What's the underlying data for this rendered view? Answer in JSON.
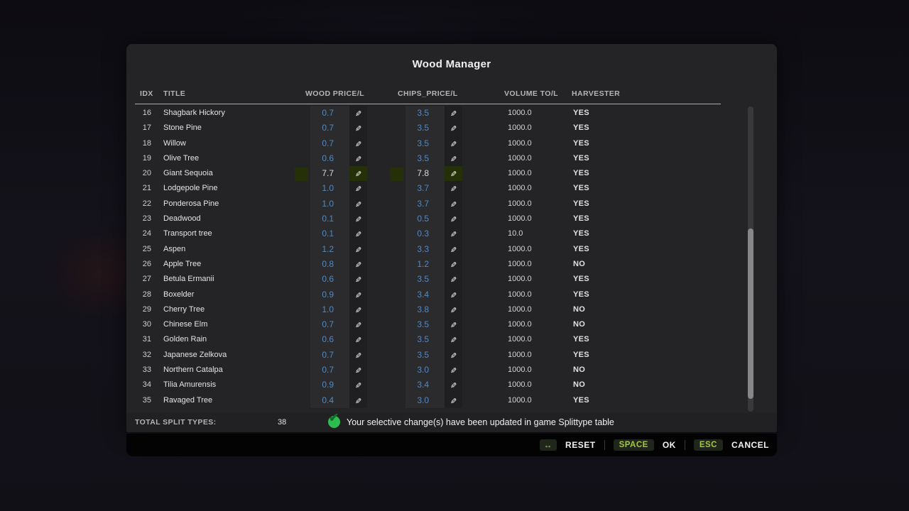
{
  "panel": {
    "title": "Wood Manager",
    "columns": {
      "idx": "IDX",
      "title": "TITLE",
      "wood": "WOOD PRICE/L",
      "chips": "CHIPS_PRICE/L",
      "volume": "VOLUME TO/L",
      "harvester": "HARVESTER"
    },
    "footer": {
      "total_label": "TOTAL SPLIT TYPES:",
      "total_value": "38",
      "status_message": "Your selective change(s) have been updated in game Splittype table"
    }
  },
  "table": {
    "rows": [
      {
        "idx": "16",
        "title": "Shagbark Hickory",
        "wood": "0.7",
        "chips": "3.5",
        "volume": "1000.0",
        "harvester": "YES",
        "highlight": false
      },
      {
        "idx": "17",
        "title": "Stone Pine",
        "wood": "0.7",
        "chips": "3.5",
        "volume": "1000.0",
        "harvester": "YES",
        "highlight": false
      },
      {
        "idx": "18",
        "title": "Willow",
        "wood": "0.7",
        "chips": "3.5",
        "volume": "1000.0",
        "harvester": "YES",
        "highlight": false
      },
      {
        "idx": "19",
        "title": "Olive Tree",
        "wood": "0.6",
        "chips": "3.5",
        "volume": "1000.0",
        "harvester": "YES",
        "highlight": false
      },
      {
        "idx": "20",
        "title": "Giant Sequoia",
        "wood": "7.7",
        "chips": "7.8",
        "volume": "1000.0",
        "harvester": "YES",
        "highlight": true
      },
      {
        "idx": "21",
        "title": "Lodgepole Pine",
        "wood": "1.0",
        "chips": "3.7",
        "volume": "1000.0",
        "harvester": "YES",
        "highlight": false
      },
      {
        "idx": "22",
        "title": "Ponderosa Pine",
        "wood": "1.0",
        "chips": "3.7",
        "volume": "1000.0",
        "harvester": "YES",
        "highlight": false
      },
      {
        "idx": "23",
        "title": "Deadwood",
        "wood": "0.1",
        "chips": "0.5",
        "volume": "1000.0",
        "harvester": "YES",
        "highlight": false
      },
      {
        "idx": "24",
        "title": "Transport tree",
        "wood": "0.1",
        "chips": "0.3",
        "volume": "10.0",
        "harvester": "YES",
        "highlight": false
      },
      {
        "idx": "25",
        "title": "Aspen",
        "wood": "1.2",
        "chips": "3.3",
        "volume": "1000.0",
        "harvester": "YES",
        "highlight": false
      },
      {
        "idx": "26",
        "title": "Apple Tree",
        "wood": "0.8",
        "chips": "1.2",
        "volume": "1000.0",
        "harvester": "NO",
        "highlight": false
      },
      {
        "idx": "27",
        "title": "Betula Ermanii",
        "wood": "0.6",
        "chips": "3.5",
        "volume": "1000.0",
        "harvester": "YES",
        "highlight": false
      },
      {
        "idx": "28",
        "title": "Boxelder",
        "wood": "0.9",
        "chips": "3.4",
        "volume": "1000.0",
        "harvester": "YES",
        "highlight": false
      },
      {
        "idx": "29",
        "title": "Cherry Tree",
        "wood": "1.0",
        "chips": "3.8",
        "volume": "1000.0",
        "harvester": "NO",
        "highlight": false
      },
      {
        "idx": "30",
        "title": "Chinese Elm",
        "wood": "0.7",
        "chips": "3.5",
        "volume": "1000.0",
        "harvester": "NO",
        "highlight": false
      },
      {
        "idx": "31",
        "title": "Golden Rain",
        "wood": "0.6",
        "chips": "3.5",
        "volume": "1000.0",
        "harvester": "YES",
        "highlight": false
      },
      {
        "idx": "32",
        "title": "Japanese Zelkova",
        "wood": "0.7",
        "chips": "3.5",
        "volume": "1000.0",
        "harvester": "YES",
        "highlight": false
      },
      {
        "idx": "33",
        "title": "Northern Catalpa",
        "wood": "0.7",
        "chips": "3.0",
        "volume": "1000.0",
        "harvester": "NO",
        "highlight": false
      },
      {
        "idx": "34",
        "title": "Tilia Amurensis",
        "wood": "0.9",
        "chips": "3.4",
        "volume": "1000.0",
        "harvester": "NO",
        "highlight": false
      },
      {
        "idx": "35",
        "title": "Ravaged Tree",
        "wood": "0.4",
        "chips": "3.0",
        "volume": "1000.0",
        "harvester": "YES",
        "highlight": false
      }
    ]
  },
  "actions": {
    "reset_key": "↔",
    "reset_label": "RESET",
    "ok_key": "SPACE",
    "ok_label": "OK",
    "cancel_key": "ESC",
    "cancel_label": "CANCEL"
  },
  "icons": {
    "pencil": "✎",
    "check": "✔"
  },
  "colors": {
    "value_blue": "#5688bd",
    "accent_green": "#a3c73c",
    "highlight_olive": "#252f08",
    "check_green": "#2dbd51",
    "panel_bg": "#242426"
  }
}
